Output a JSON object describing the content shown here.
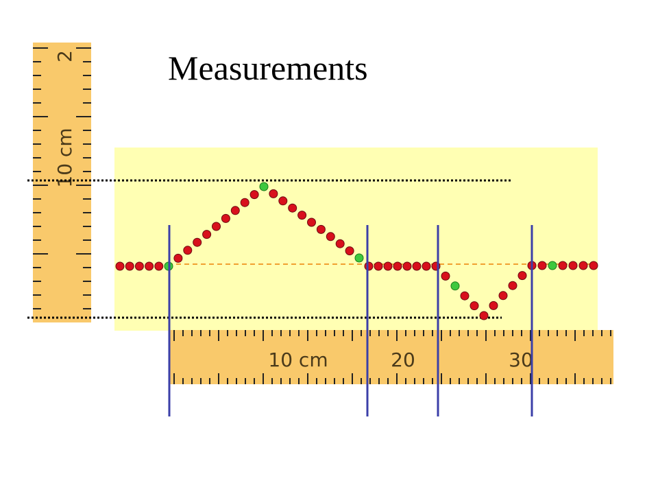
{
  "title": "Measurements",
  "vertical_ruler": {
    "labels": [
      "2",
      "10 cm"
    ]
  },
  "horizontal_ruler": {
    "labels": [
      "10 cm",
      "20",
      "30"
    ]
  }
}
